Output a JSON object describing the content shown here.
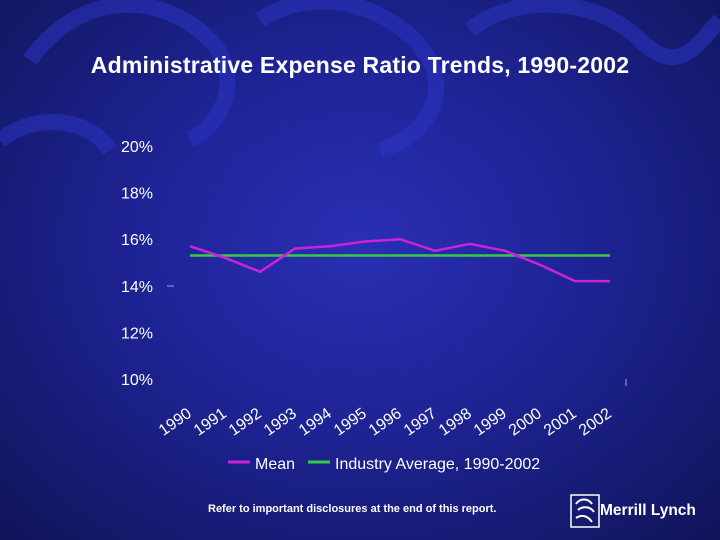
{
  "title": "Administrative Expense Ratio Trends, 1990-2002",
  "disclaimer": "Refer to important disclosures at the end of this report.",
  "logo": {
    "text": "Merrill Lynch"
  },
  "colors": {
    "mean": "#cc22dd",
    "industry": "#33cc44",
    "text": "#ffffff"
  },
  "chart_data": {
    "type": "line",
    "title": "Administrative Expense Ratio Trends, 1990-2002",
    "categories": [
      "1990",
      "1991",
      "1992",
      "1993",
      "1994",
      "1995",
      "1996",
      "1997",
      "1998",
      "1999",
      "2000",
      "2001",
      "2002"
    ],
    "y_ticks": [
      "20%",
      "18%",
      "16%",
      "14%",
      "12%",
      "10%"
    ],
    "ylim": [
      10,
      20
    ],
    "series": [
      {
        "name": "Mean",
        "values": [
          15.7,
          15.2,
          14.6,
          15.6,
          15.7,
          15.9,
          16.0,
          15.5,
          15.8,
          15.5,
          14.9,
          14.2,
          14.2
        ]
      },
      {
        "name": "Industry Average, 1990-2002",
        "values": [
          15.3,
          15.3,
          15.3,
          15.3,
          15.3,
          15.3,
          15.3,
          15.3,
          15.3,
          15.3,
          15.3,
          15.3,
          15.3
        ]
      }
    ],
    "legend": [
      "Mean",
      "Industry Average, 1990-2002"
    ],
    "legend_position": "bottom"
  }
}
